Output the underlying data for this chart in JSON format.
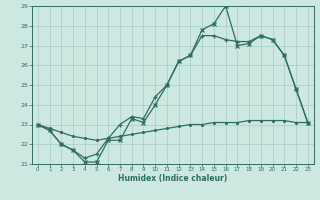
{
  "xlabel": "Humidex (Indice chaleur)",
  "bg_color": "#cce8e0",
  "line_color": "#2e6e60",
  "grid_color": "#a8ccc4",
  "xlim": [
    -0.5,
    23.5
  ],
  "ylim": [
    21.0,
    29.0
  ],
  "xticks": [
    0,
    1,
    2,
    3,
    4,
    5,
    6,
    7,
    8,
    9,
    10,
    11,
    12,
    13,
    14,
    15,
    16,
    17,
    18,
    19,
    20,
    21,
    22,
    23
  ],
  "yticks": [
    21,
    22,
    23,
    24,
    25,
    26,
    27,
    28,
    29
  ],
  "line1_x": [
    0,
    1,
    2,
    3,
    4,
    5,
    6,
    7,
    8,
    9,
    10,
    11,
    12,
    13,
    14,
    15,
    16,
    17,
    18,
    19,
    20,
    21,
    22,
    23
  ],
  "line1_y": [
    23.0,
    22.7,
    22.0,
    21.7,
    21.1,
    21.1,
    22.2,
    22.2,
    23.3,
    23.1,
    24.0,
    25.0,
    26.2,
    26.5,
    27.8,
    28.1,
    29.0,
    27.0,
    27.1,
    27.5,
    27.3,
    26.5,
    24.8,
    23.1
  ],
  "line2_x": [
    0,
    1,
    2,
    3,
    4,
    5,
    6,
    7,
    8,
    9,
    10,
    11,
    12,
    13,
    14,
    15,
    16,
    17,
    18,
    19,
    20,
    21,
    22,
    23
  ],
  "line2_y": [
    23.0,
    22.7,
    22.0,
    21.7,
    21.3,
    21.5,
    22.3,
    23.0,
    23.4,
    23.3,
    24.4,
    25.0,
    26.2,
    26.5,
    27.5,
    27.5,
    27.3,
    27.2,
    27.2,
    27.5,
    27.3,
    26.5,
    24.8,
    23.1
  ],
  "line3_x": [
    0,
    1,
    2,
    3,
    4,
    5,
    6,
    7,
    8,
    9,
    10,
    11,
    12,
    13,
    14,
    15,
    16,
    17,
    18,
    19,
    20,
    21,
    22,
    23
  ],
  "line3_y": [
    23.0,
    22.8,
    22.6,
    22.4,
    22.3,
    22.2,
    22.3,
    22.4,
    22.5,
    22.6,
    22.7,
    22.8,
    22.9,
    23.0,
    23.0,
    23.1,
    23.1,
    23.1,
    23.2,
    23.2,
    23.2,
    23.2,
    23.1,
    23.1
  ]
}
